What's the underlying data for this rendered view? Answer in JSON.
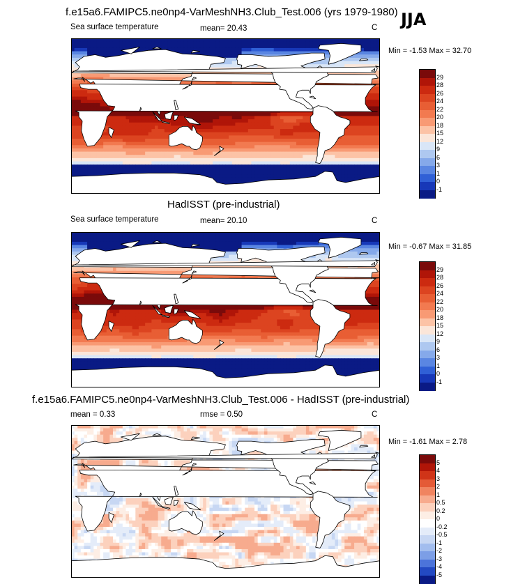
{
  "season": "JJA",
  "panels": [
    {
      "title": "f.e15a6.FAMIPC5.ne0np4-VarMeshNH3.Club_Test.006 (yrs 1979-1980)",
      "variable": "Sea surface temperature",
      "stat1": "mean=  20.43",
      "stat2": "",
      "units": "C",
      "minmax": "Min = -1.53 Max = 32.70",
      "kind": "abs",
      "cbar_labels": [
        "29",
        "28",
        "26",
        "24",
        "22",
        "20",
        "18",
        "15",
        "12",
        "9",
        "6",
        "3",
        "1",
        "0",
        "-1"
      ]
    },
    {
      "title": "HadISST (pre-industrial)",
      "variable": "Sea surface temperature",
      "stat1": "mean=  20.10",
      "stat2": "",
      "units": "C",
      "minmax": "Min = -0.67 Max = 31.85",
      "kind": "abs",
      "cbar_labels": [
        "29",
        "28",
        "26",
        "24",
        "22",
        "20",
        "18",
        "15",
        "12",
        "9",
        "6",
        "3",
        "1",
        "0",
        "-1"
      ]
    },
    {
      "title": "f.e15a6.FAMIPC5.ne0np4-VarMeshNH3.Club_Test.006 - HadISST (pre-industrial)",
      "variable": "",
      "stat1": "mean =   0.33",
      "stat2": "rmse =   0.50",
      "units": "C",
      "minmax": "Min = -1.61 Max =  2.78",
      "kind": "diff",
      "cbar_labels": [
        "5",
        "4",
        "3",
        "2",
        "1",
        "0.5",
        "0.2",
        "0",
        "-0.2",
        "-0.5",
        "-1",
        "-2",
        "-3",
        "-4",
        "-5"
      ]
    }
  ],
  "colors": {
    "abs": [
      "#7a0a0a",
      "#b01508",
      "#cc2a10",
      "#dc4420",
      "#e85e34",
      "#f27a50",
      "#f89a74",
      "#fcc3a6",
      "#fbe6d9",
      "#d9e6f7",
      "#aec8f0",
      "#85a9ea",
      "#5a86e2",
      "#3060d6",
      "#1738b8",
      "#0a1a85"
    ],
    "diff": [
      "#7a0a0a",
      "#b01508",
      "#d03418",
      "#e45a36",
      "#f08460",
      "#f7ab8e",
      "#fcd1bd",
      "#fdeee5",
      "#ffffff",
      "#e4ecf9",
      "#c7d7f3",
      "#a2bdee",
      "#7c9ee6",
      "#4c74da",
      "#2349c2",
      "#0a1a85"
    ]
  }
}
